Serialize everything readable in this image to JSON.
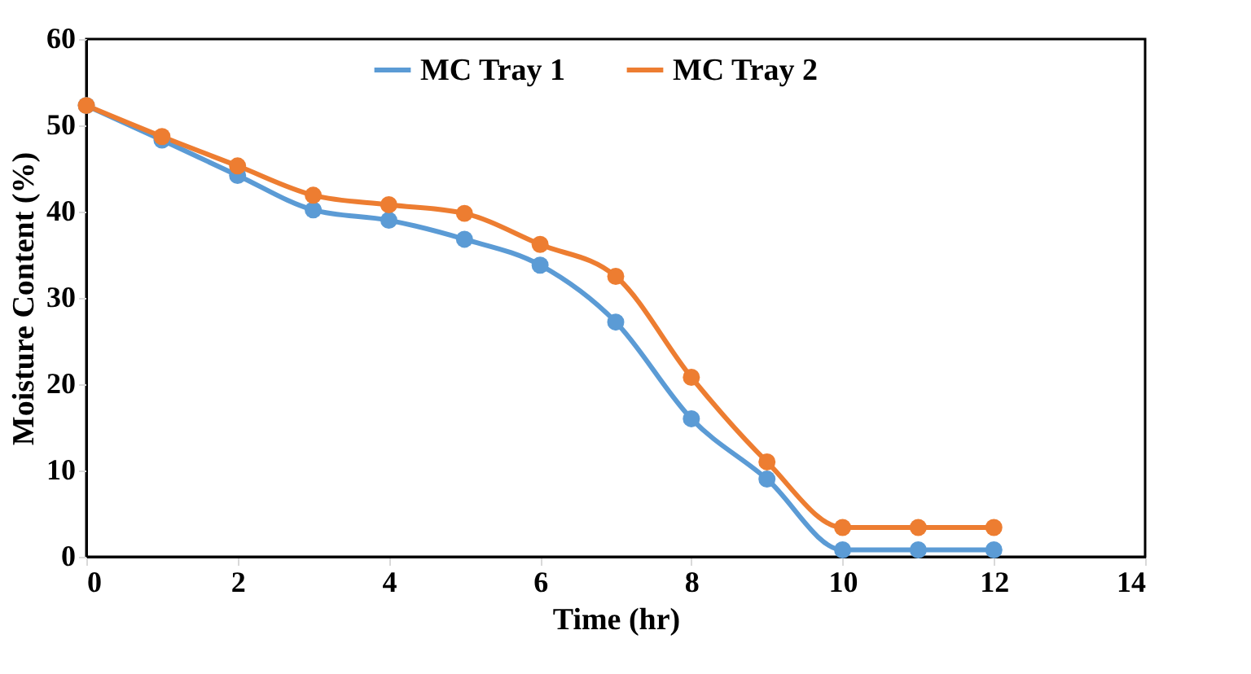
{
  "chart_data": {
    "type": "line",
    "xlabel": "Time (hr)",
    "ylabel": "Moisture Content (%)",
    "x": [
      0,
      1,
      2,
      3,
      4,
      5,
      6,
      7,
      8,
      9,
      10,
      11,
      12
    ],
    "series": [
      {
        "name": "MC Tray 1",
        "color": "#5b9bd5",
        "values": [
          52.3,
          48.3,
          44.2,
          40.2,
          39.0,
          36.8,
          33.8,
          27.2,
          16.0,
          9.0,
          0.8,
          0.8,
          0.8
        ]
      },
      {
        "name": "MC Tray 2",
        "color": "#ed7d31",
        "values": [
          52.3,
          48.7,
          45.3,
          41.9,
          40.8,
          39.8,
          36.2,
          32.5,
          20.8,
          11.0,
          3.4,
          3.4,
          3.4
        ]
      }
    ],
    "xlim": [
      0,
      14
    ],
    "xticks": [
      0,
      2,
      4,
      6,
      8,
      10,
      12,
      14
    ],
    "ylim": [
      0,
      60
    ],
    "yticks": [
      0,
      10,
      20,
      30,
      40,
      50,
      60
    ],
    "grid": false,
    "legend": "top",
    "marker": "circle",
    "line_style": "solid"
  }
}
